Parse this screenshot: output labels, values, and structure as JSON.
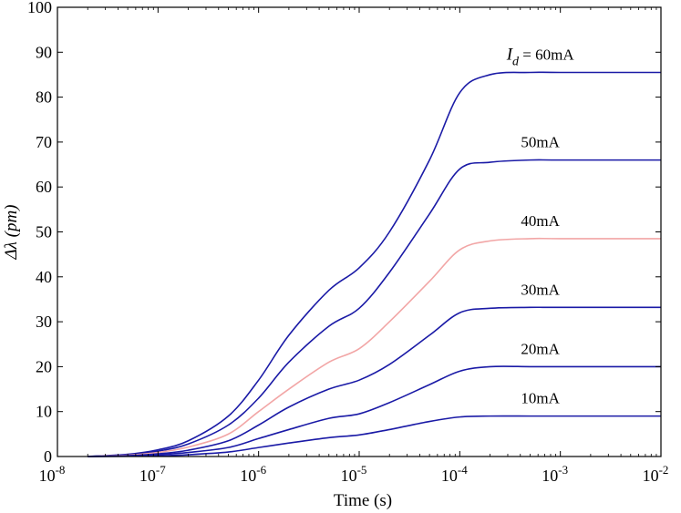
{
  "chart_data": {
    "type": "line",
    "xlabel": "Time (s)",
    "ylabel": "Δλ (pm)",
    "xscale": "log",
    "xlim": [
      1e-08,
      0.01
    ],
    "ylim": [
      0,
      100
    ],
    "grid": false,
    "legend": "inline labels next to curves",
    "x_ticks": [
      {
        "base": "10",
        "exp": "-8"
      },
      {
        "base": "10",
        "exp": "-7"
      },
      {
        "base": "10",
        "exp": "-6"
      },
      {
        "base": "10",
        "exp": "-5"
      },
      {
        "base": "10",
        "exp": "-4"
      },
      {
        "base": "10",
        "exp": "-3"
      },
      {
        "base": "10",
        "exp": "-2"
      }
    ],
    "y_ticks": [
      "0",
      "10",
      "20",
      "30",
      "40",
      "50",
      "60",
      "70",
      "80",
      "90",
      "100"
    ],
    "x": [
      2e-08,
      5e-08,
      1e-07,
      2e-07,
      5e-07,
      1e-06,
      2e-06,
      5e-06,
      1e-05,
      2e-05,
      5e-05,
      0.0001,
      0.0002,
      0.0005,
      0.001,
      0.01
    ],
    "series": [
      {
        "name": "60mA",
        "label_prefix": "I",
        "label_sub": "d",
        "label_text": " = 60mA",
        "color": "#1a1aa6",
        "values": [
          0,
          0.5,
          1.5,
          3.5,
          9,
          17,
          27,
          37,
          42,
          50,
          66,
          81,
          85,
          85.5,
          85.5,
          85.5
        ]
      },
      {
        "name": "50mA",
        "label_text": "50mA",
        "color": "#1a1aa6",
        "values": [
          0,
          0.4,
          1.2,
          2.8,
          7,
          13,
          21,
          29,
          33,
          41,
          54,
          64,
          65.5,
          66,
          66,
          66
        ]
      },
      {
        "name": "40mA",
        "label_text": "40mA",
        "color": "#f2a6a6",
        "values": [
          0,
          0.3,
          0.9,
          2.1,
          5,
          10,
          15,
          21,
          24,
          30,
          39,
          46,
          48,
          48.5,
          48.5,
          48.5
        ]
      },
      {
        "name": "30mA",
        "label_text": "30mA",
        "color": "#1a1aa6",
        "values": [
          0,
          0.2,
          0.6,
          1.4,
          3.5,
          7,
          11,
          15,
          17,
          20.5,
          27,
          32,
          33,
          33.2,
          33.2,
          33.2
        ]
      },
      {
        "name": "20mA",
        "label_text": "20mA",
        "color": "#1a1aa6",
        "values": [
          0,
          0.1,
          0.4,
          0.9,
          2,
          4,
          6,
          8.5,
          9.5,
          12,
          16,
          19,
          20,
          20,
          20,
          20
        ]
      },
      {
        "name": "10mA",
        "label_text": "10mA",
        "color": "#1a1aa6",
        "values": [
          0,
          0.05,
          0.15,
          0.4,
          1,
          2,
          3,
          4.2,
          4.8,
          6,
          7.8,
          8.8,
          9,
          9,
          9,
          9
        ]
      }
    ]
  }
}
